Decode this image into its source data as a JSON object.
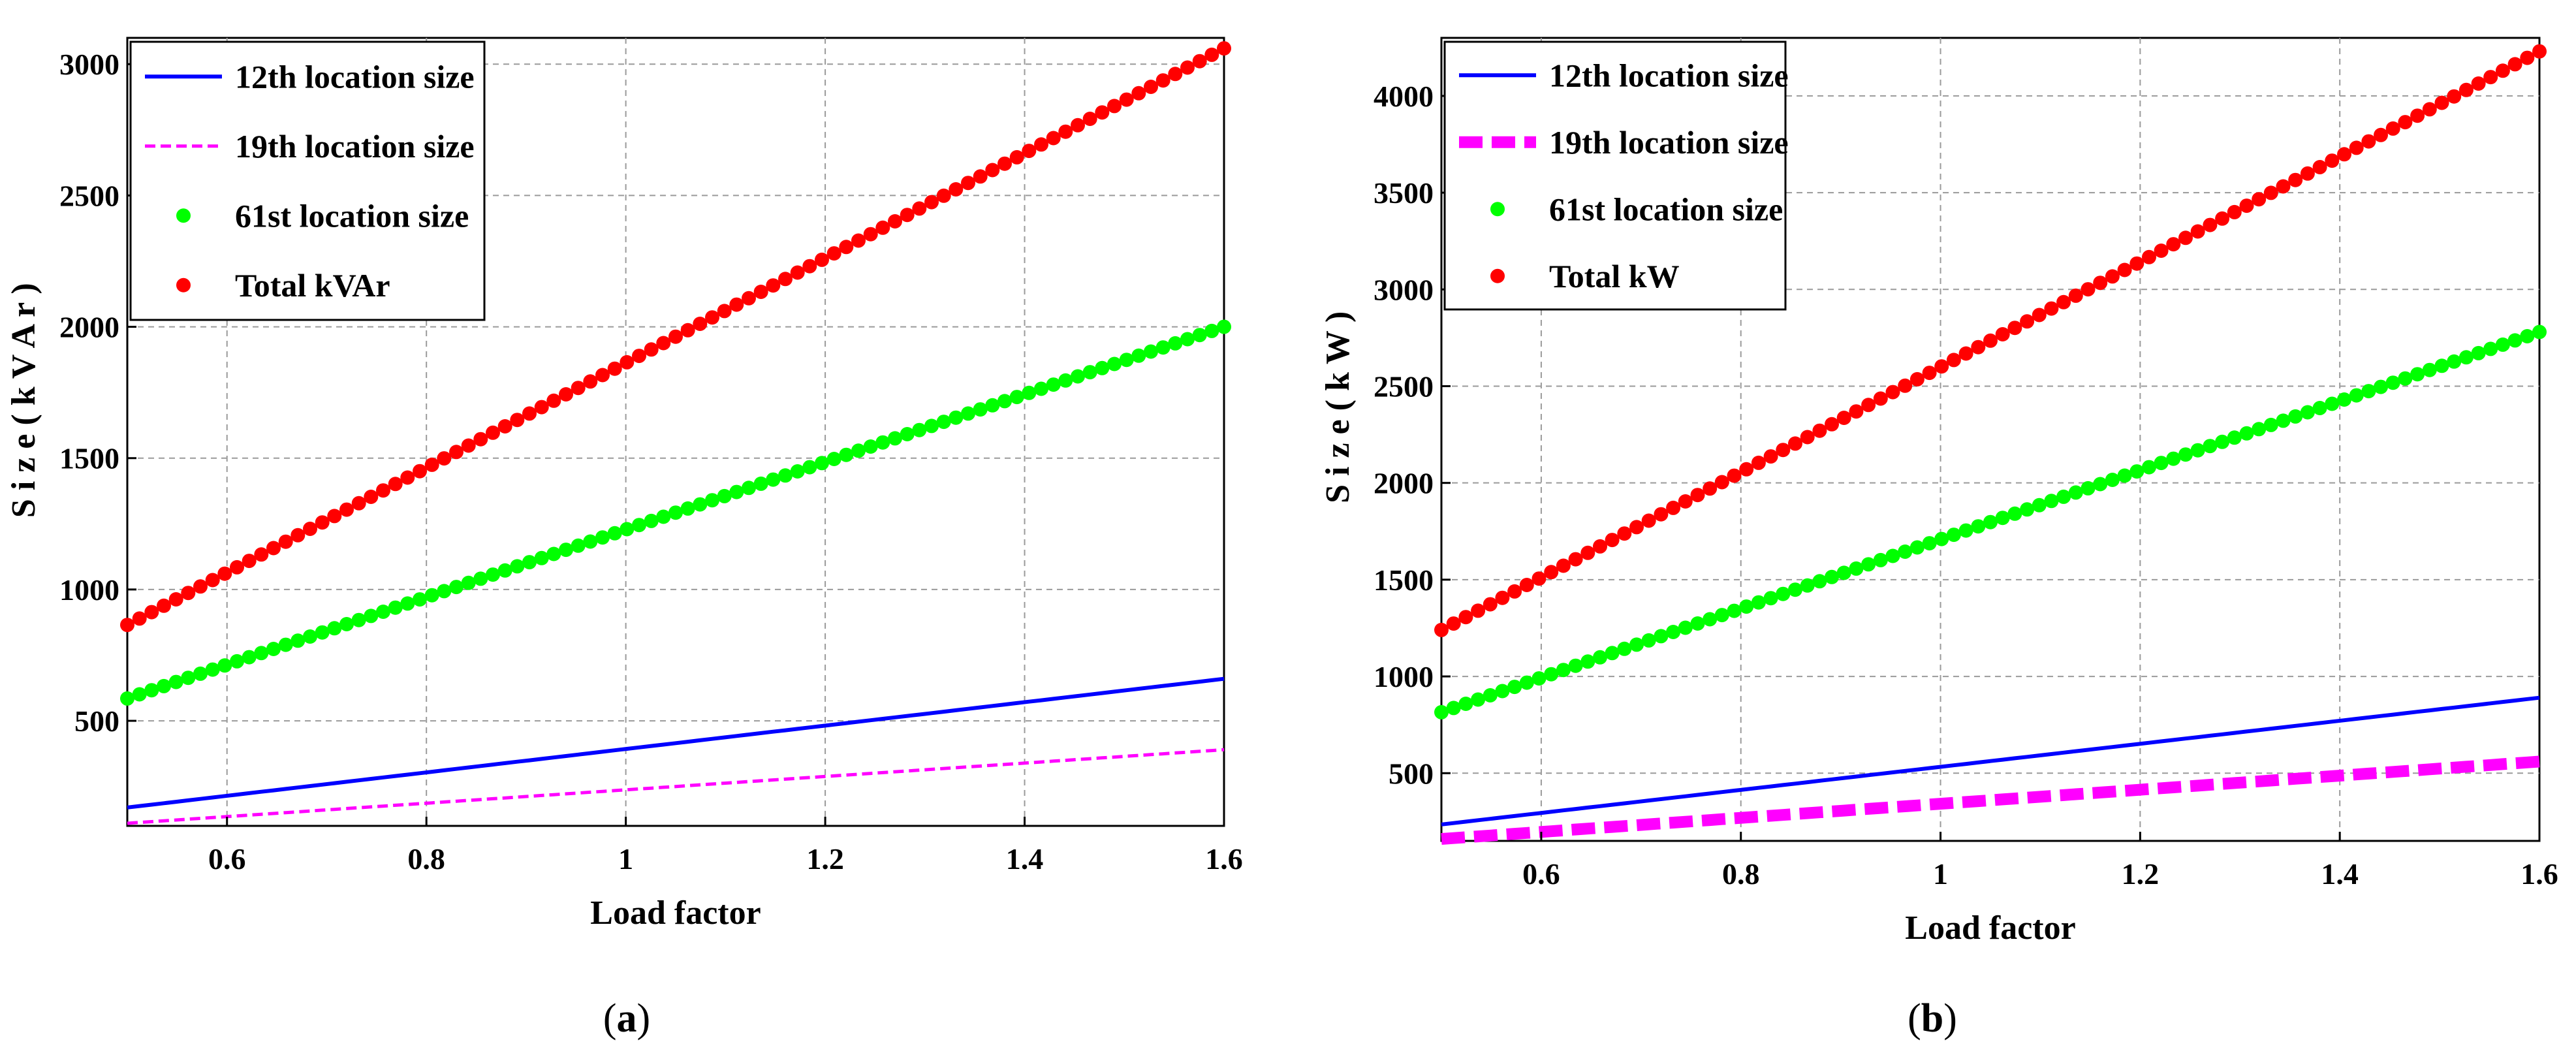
{
  "chart_data": [
    {
      "type": "line",
      "caption_letter": "a",
      "title": "",
      "xlabel": "Load factor",
      "ylabel": "S i z e ( k V A r )",
      "xlim": [
        0.5,
        1.6
      ],
      "ylim": [
        100,
        3100
      ],
      "xticks": [
        0.6,
        0.8,
        1,
        1.2,
        1.4,
        1.6
      ],
      "xtick_labels": [
        "0.6",
        "0.8",
        "1",
        "1.2",
        "1.4",
        "1.6"
      ],
      "yticks": [
        500,
        1000,
        1500,
        2000,
        2500,
        3000
      ],
      "ytick_labels": [
        "500",
        "1000",
        "1500",
        "2000",
        "2500",
        "3000"
      ],
      "grid": true,
      "legend_position": "top-left",
      "series": [
        {
          "name": "12th location size",
          "style": "solid",
          "color": "#0000ff",
          "x_range": [
            0.5,
            1.6
          ],
          "y_range": [
            170,
            660
          ]
        },
        {
          "name": "19th location size",
          "style": "dashed",
          "color": "#ff00ff",
          "x_range": [
            0.5,
            1.6
          ],
          "y_range": [
            110,
            390
          ]
        },
        {
          "name": "61st location size",
          "style": "dots",
          "color": "#00ff00",
          "x_range": [
            0.5,
            1.6
          ],
          "y_range": [
            585,
            2000
          ]
        },
        {
          "name": "Total kVAr",
          "style": "dots",
          "color": "#ff0000",
          "x_range": [
            0.5,
            1.6
          ],
          "y_range": [
            865,
            3060
          ]
        }
      ]
    },
    {
      "type": "line",
      "caption_letter": "b",
      "title": "",
      "xlabel": "Load factor",
      "ylabel": "S i z e ( k W )",
      "xlim": [
        0.5,
        1.6
      ],
      "ylim": [
        150,
        4300
      ],
      "xticks": [
        0.6,
        0.8,
        1,
        1.2,
        1.4,
        1.6
      ],
      "xtick_labels": [
        "0.6",
        "0.8",
        "1",
        "1.2",
        "1.4",
        "1.6"
      ],
      "yticks": [
        500,
        1000,
        1500,
        2000,
        2500,
        3000,
        3500,
        4000
      ],
      "ytick_labels": [
        "500",
        "1000",
        "1500",
        "2000",
        "2500",
        "3000",
        "3500",
        "4000"
      ],
      "grid": true,
      "legend_position": "top-left",
      "series": [
        {
          "name": "12th location size",
          "style": "solid",
          "color": "#0000ff",
          "x_range": [
            0.5,
            1.6
          ],
          "y_range": [
            235,
            890
          ]
        },
        {
          "name": "19th location size",
          "style": "thick-dashed",
          "color": "#ff00ff",
          "x_range": [
            0.5,
            1.6
          ],
          "y_range": [
            160,
            560
          ]
        },
        {
          "name": "61st location size",
          "style": "dots",
          "color": "#00ff00",
          "x_range": [
            0.5,
            1.6
          ],
          "y_range": [
            815,
            2780
          ]
        },
        {
          "name": "Total kW",
          "style": "dots",
          "color": "#ff0000",
          "x_range": [
            0.5,
            1.6
          ],
          "y_range": [
            1240,
            4230
          ]
        }
      ]
    }
  ]
}
